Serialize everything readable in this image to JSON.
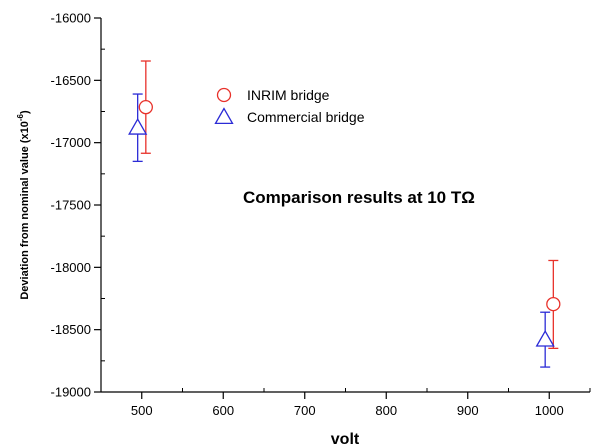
{
  "chart_data": {
    "type": "scatter",
    "xlabel": "volt",
    "ylabel_main": "Deviation from nominal value (x10",
    "ylabel_sup": "-6",
    "ylabel_end": ")",
    "xlim": [
      450,
      1050
    ],
    "ylim": [
      -19000,
      -16000
    ],
    "xticks": [
      500,
      600,
      700,
      800,
      900,
      1000
    ],
    "yticks": [
      -19000,
      -18500,
      -18000,
      -17500,
      -17000,
      -16500,
      -16000
    ],
    "xtick_labels": [
      "500",
      "600",
      "700",
      "800",
      "900",
      "1000"
    ],
    "ytick_labels": [
      "-19000",
      "-18500",
      "-18000",
      "-17500",
      "-17000",
      "-16500",
      "-16000"
    ],
    "annotation": "Comparison results at 10 TΩ",
    "legend_position": "upper-left",
    "series": [
      {
        "name": "INRIM bridge",
        "marker": "circle",
        "color": "#e8312a",
        "points": [
          {
            "x": 505,
            "y": -16715,
            "yerr_low": -17085,
            "yerr_high": -16345
          },
          {
            "x": 1005,
            "y": -18295,
            "yerr_low": -18650,
            "yerr_high": -17945
          }
        ]
      },
      {
        "name": "Commercial bridge",
        "marker": "triangle",
        "color": "#2b2bd6",
        "points": [
          {
            "x": 495,
            "y": -16880,
            "yerr_low": -17150,
            "yerr_high": -16610
          },
          {
            "x": 995,
            "y": -18580,
            "yerr_low": -18800,
            "yerr_high": -18360
          }
        ]
      }
    ]
  }
}
